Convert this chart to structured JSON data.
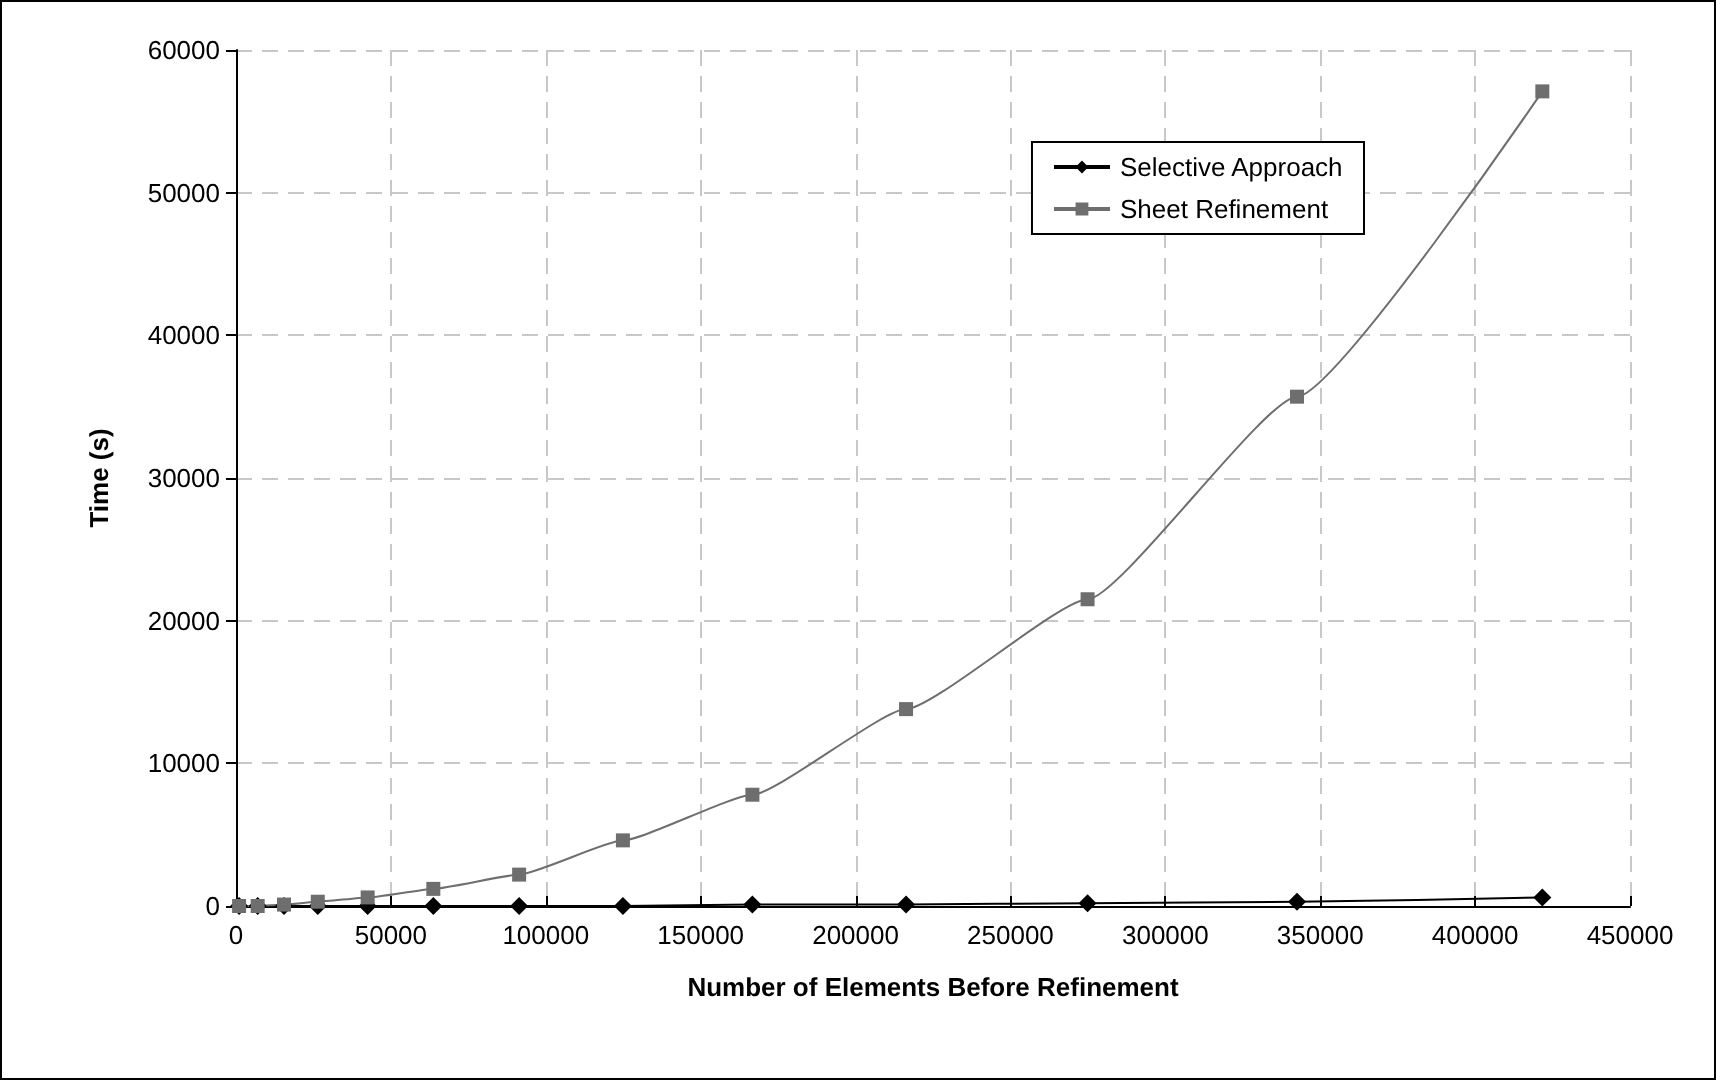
{
  "chart_data": {
    "type": "line",
    "xlabel": "Number of Elements Before Refinement",
    "ylabel": "Time (s)",
    "x": [
      1000,
      7000,
      15500,
      26400,
      42500,
      63700,
      91400,
      124900,
      166700,
      216300,
      274900,
      342500,
      421700
    ],
    "series": [
      {
        "name": "Selective Approach",
        "color": "#000000",
        "marker": "diamond",
        "values": [
          0,
          0,
          0,
          0,
          0,
          0,
          0,
          0,
          100,
          100,
          200,
          300,
          600
        ]
      },
      {
        "name": "Sheet Refinement",
        "color": "#6e6e6e",
        "marker": "square",
        "values": [
          0,
          0,
          100,
          300,
          600,
          1200,
          2200,
          4600,
          7800,
          13800,
          21500,
          35700,
          57100
        ]
      }
    ],
    "xlim": [
      0,
      450000
    ],
    "xticks": [
      0,
      50000,
      100000,
      150000,
      200000,
      250000,
      300000,
      350000,
      400000,
      450000
    ],
    "ylim": [
      0,
      60000
    ],
    "yticks": [
      0,
      10000,
      20000,
      30000,
      40000,
      50000,
      60000
    ],
    "grid": true,
    "legend": "top right",
    "line_style": "solid"
  }
}
